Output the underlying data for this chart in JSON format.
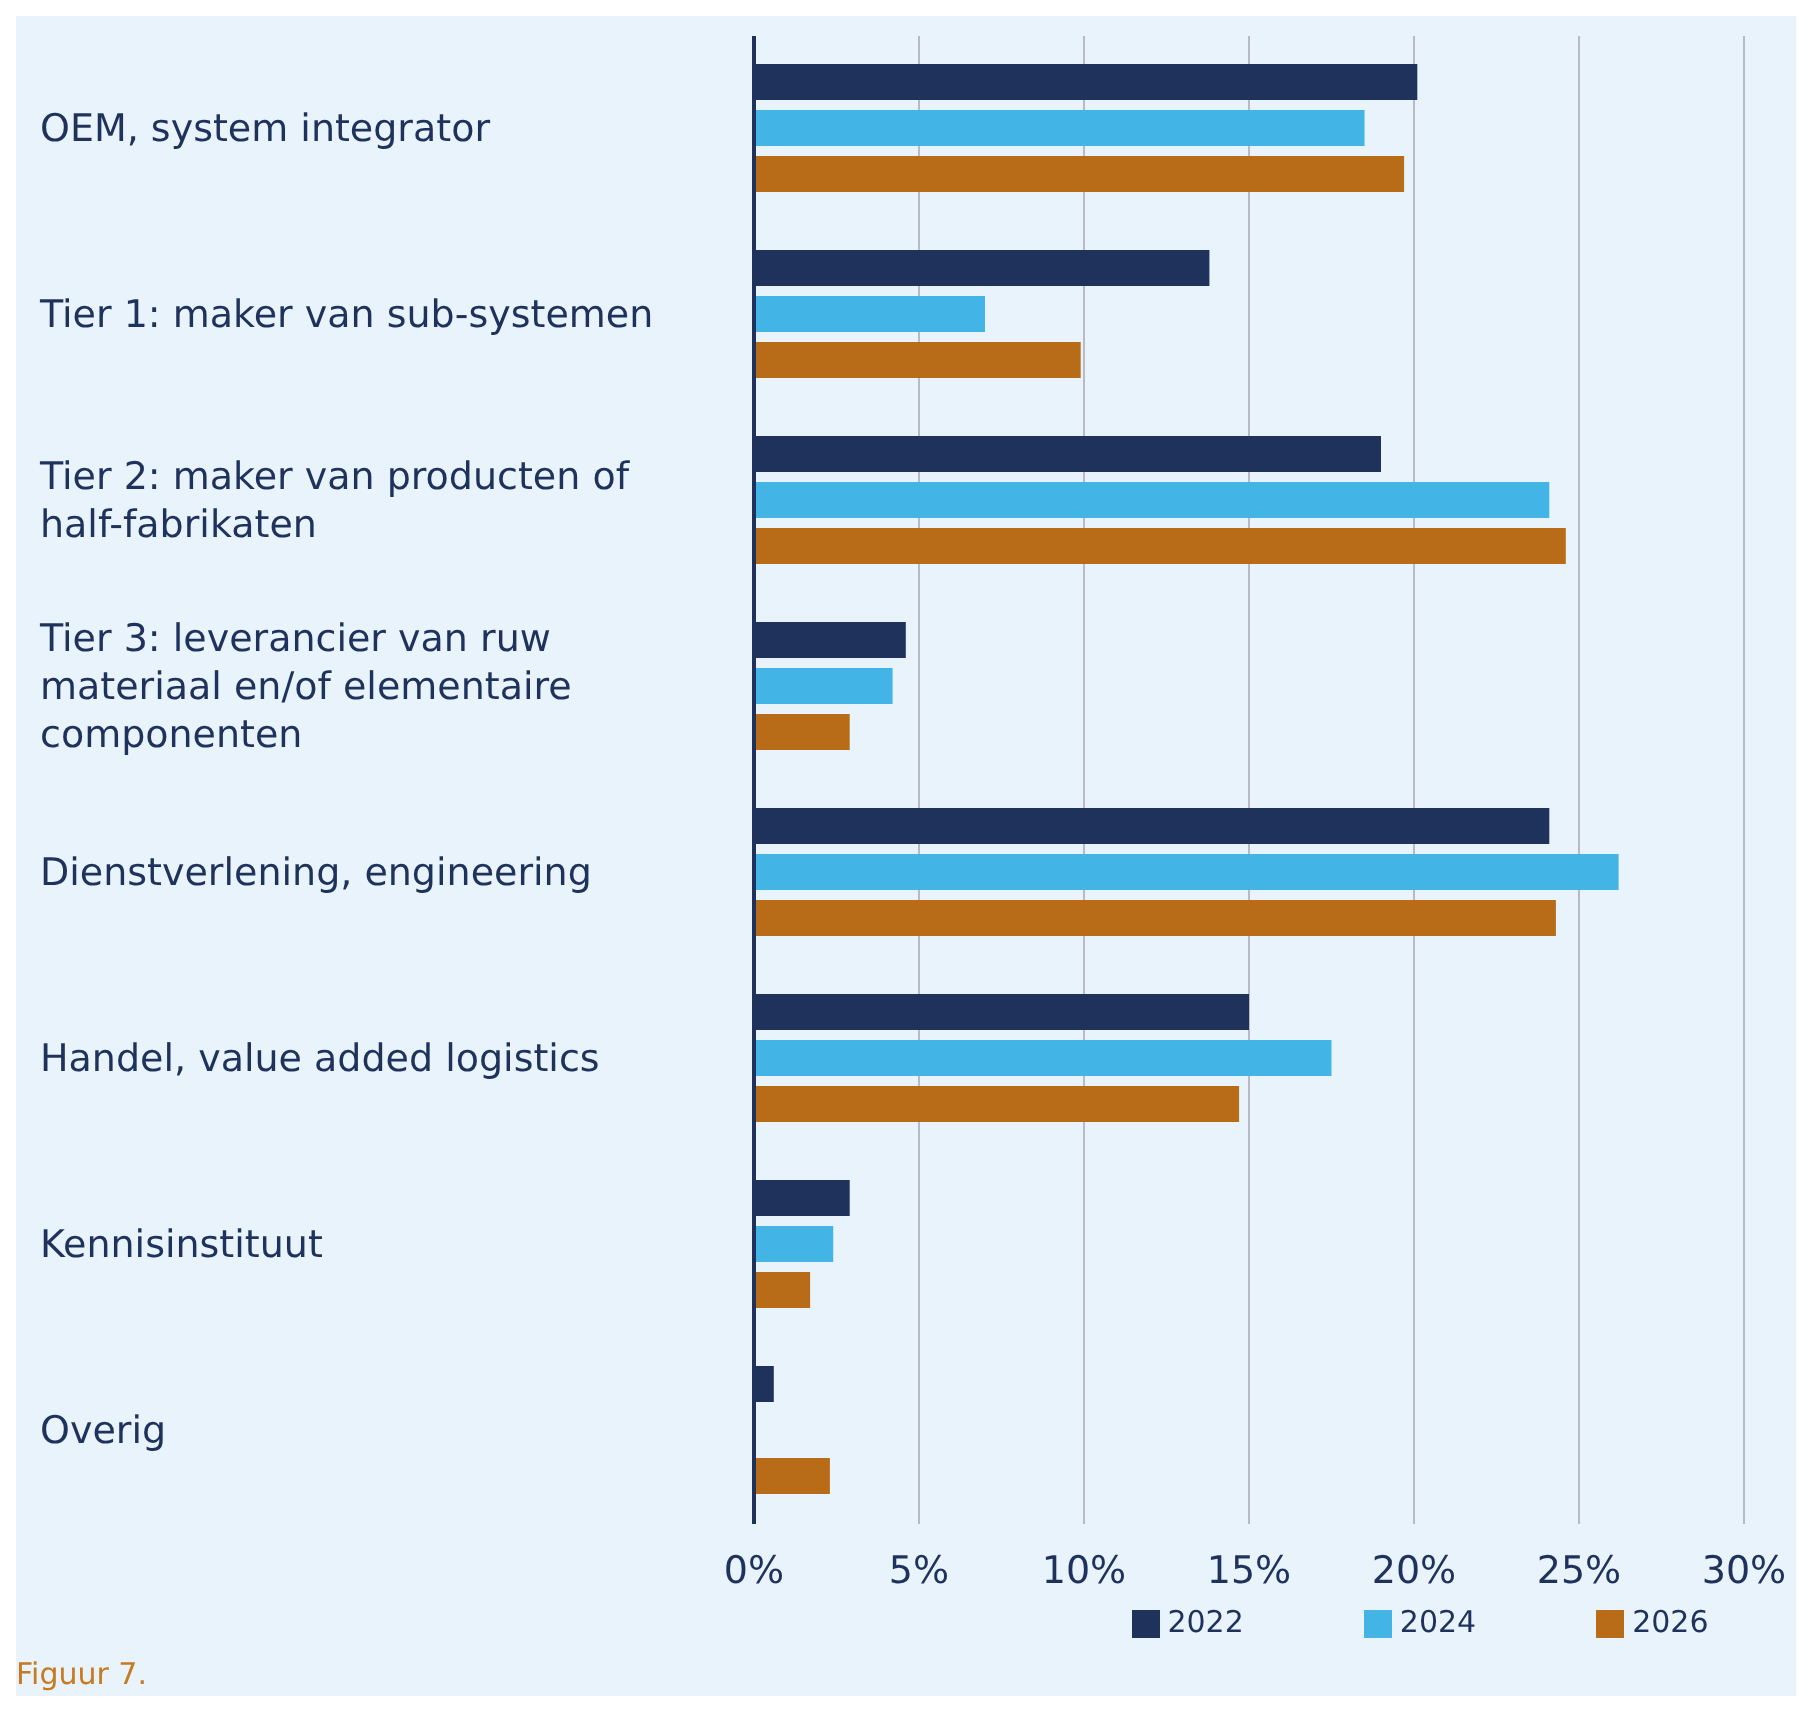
{
  "chart_data": {
    "type": "bar",
    "orientation": "horizontal",
    "categories": [
      "OEM, system integrator",
      "Tier 1: maker van sub-systemen",
      "Tier 2: maker van producten of half-fabrikaten",
      "Tier 3: leverancier van ruw materiaal en/of elementaire componenten",
      "Dienstverlening, engineering",
      "Handel, value added logistics",
      "Kennisinstituut",
      "Overig"
    ],
    "series": [
      {
        "name": "2022",
        "color": "#1f325c",
        "values": [
          20.1,
          13.8,
          19.0,
          4.6,
          24.1,
          15.0,
          2.9,
          0.6
        ]
      },
      {
        "name": "2024",
        "color": "#42b4e6",
        "values": [
          18.5,
          7.0,
          24.1,
          4.2,
          26.2,
          17.5,
          2.4,
          0
        ]
      },
      {
        "name": "2026",
        "color": "#b96c17",
        "values": [
          19.7,
          9.9,
          24.6,
          2.9,
          24.3,
          14.7,
          1.7,
          2.3
        ]
      }
    ],
    "xlim": [
      0,
      30
    ],
    "xticks": [
      {
        "value": 0,
        "label": "0%"
      },
      {
        "value": 5,
        "label": "5%"
      },
      {
        "value": 10,
        "label": "10%"
      },
      {
        "value": 15,
        "label": "15%"
      },
      {
        "value": 20,
        "label": "20%"
      },
      {
        "value": 25,
        "label": "25%"
      },
      {
        "value": 30,
        "label": "30%"
      }
    ],
    "grid": "x",
    "legend": "bottom",
    "annotations": [
      "Figuur 7."
    ]
  }
}
